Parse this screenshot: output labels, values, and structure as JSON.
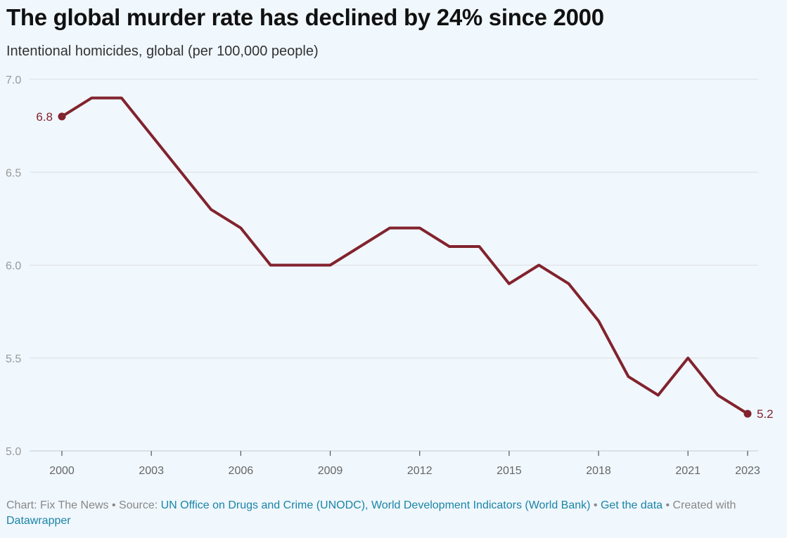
{
  "title": "The global murder rate has declined by 24% since 2000",
  "subtitle": "Intentional homicides, global (per 100,000 people)",
  "chart_data": {
    "type": "line",
    "title": "The global murder rate has declined by 24% since 2000",
    "subtitle": "Intentional homicides, global (per 100,000 people)",
    "xlabel": "",
    "ylabel": "",
    "x": [
      2000,
      2001,
      2002,
      2003,
      2004,
      2005,
      2006,
      2007,
      2008,
      2009,
      2010,
      2011,
      2012,
      2013,
      2014,
      2015,
      2016,
      2017,
      2018,
      2019,
      2020,
      2021,
      2022,
      2023
    ],
    "series": [
      {
        "name": "Intentional homicides, global (per 100,000 people)",
        "color": "#82232d",
        "values": [
          6.8,
          6.9,
          6.9,
          6.7,
          6.5,
          6.3,
          6.2,
          6.0,
          6.0,
          6.0,
          6.1,
          6.2,
          6.2,
          6.1,
          6.1,
          5.9,
          6.0,
          5.9,
          5.7,
          5.4,
          5.3,
          5.5,
          5.3,
          5.2
        ]
      }
    ],
    "xlim": [
      2000,
      2023
    ],
    "ylim": [
      5.0,
      7.0
    ],
    "x_ticks": [
      "2000",
      "2003",
      "2006",
      "2009",
      "2012",
      "2015",
      "2018",
      "2021",
      "2023"
    ],
    "y_ticks": [
      "7.0",
      "6.5",
      "6.0",
      "5.5",
      "5.0"
    ],
    "annotations": [
      {
        "label": "6.8",
        "year": 2000,
        "value": 6.8,
        "side": "left"
      },
      {
        "label": "5.2",
        "year": 2023,
        "value": 5.2,
        "side": "right"
      }
    ],
    "grid": true
  },
  "footer": {
    "prefix": "Chart: Fix The News • Source: ",
    "source_link": "UN Office on Drugs and Crime (UNODC), World Development Indicators (World Bank)",
    "sep1": " • ",
    "get_data": "Get the data",
    "sep2": " • Created with ",
    "created_with": "Datawrapper"
  },
  "colors": {
    "line": "#82232d",
    "grid": "#dcdfe2",
    "tick_text": "#999999",
    "link": "#1a84a6",
    "background": "#f0f7fd"
  }
}
